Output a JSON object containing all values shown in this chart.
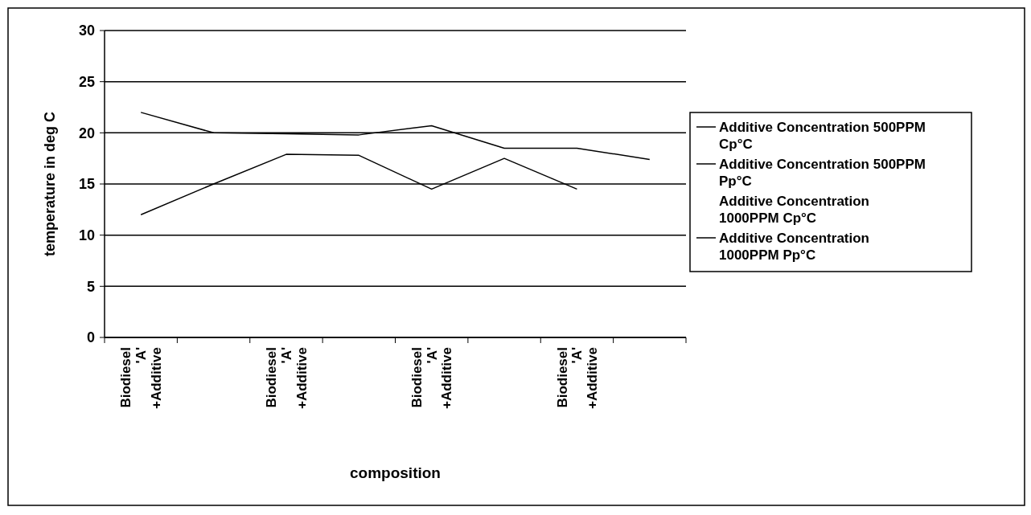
{
  "chart_data": {
    "type": "line",
    "xlabel": "composition",
    "ylabel": "temperature in deg C",
    "categories": [
      "Biodiesel 'A' +Additive",
      null,
      "Biodiesel 'A' +Additive",
      null,
      "Biodiesel 'A' +Additive",
      null,
      "Biodiesel 'A' +Additive",
      null
    ],
    "series": [
      {
        "name": "Additive Concentration 500PPM Cp°C",
        "color": "#000000",
        "values": [
          22,
          20,
          19.9,
          19.8,
          20.7,
          18.5,
          18.5,
          17.4
        ]
      },
      {
        "name": "Additive Concentration 500PPM Pp°C",
        "color": "#000000",
        "values": [
          12,
          15,
          17.9,
          17.8,
          14.5,
          17.5,
          14.5,
          null
        ]
      },
      {
        "name": "Additive Concentration 1000PPM Cp°C",
        "values": [
          null,
          null,
          null,
          null,
          null,
          null,
          null,
          null
        ]
      },
      {
        "name": "Additive Concentration 1000PPM Pp°C",
        "color": "#000000",
        "values": [
          null,
          null,
          null,
          null,
          null,
          null,
          null,
          null
        ]
      }
    ],
    "ylim": [
      0,
      30
    ],
    "yticks": [
      0,
      5,
      10,
      15,
      20,
      25,
      30
    ],
    "grid": "y",
    "legend": "right",
    "marker": "none",
    "line_style": "solid"
  }
}
